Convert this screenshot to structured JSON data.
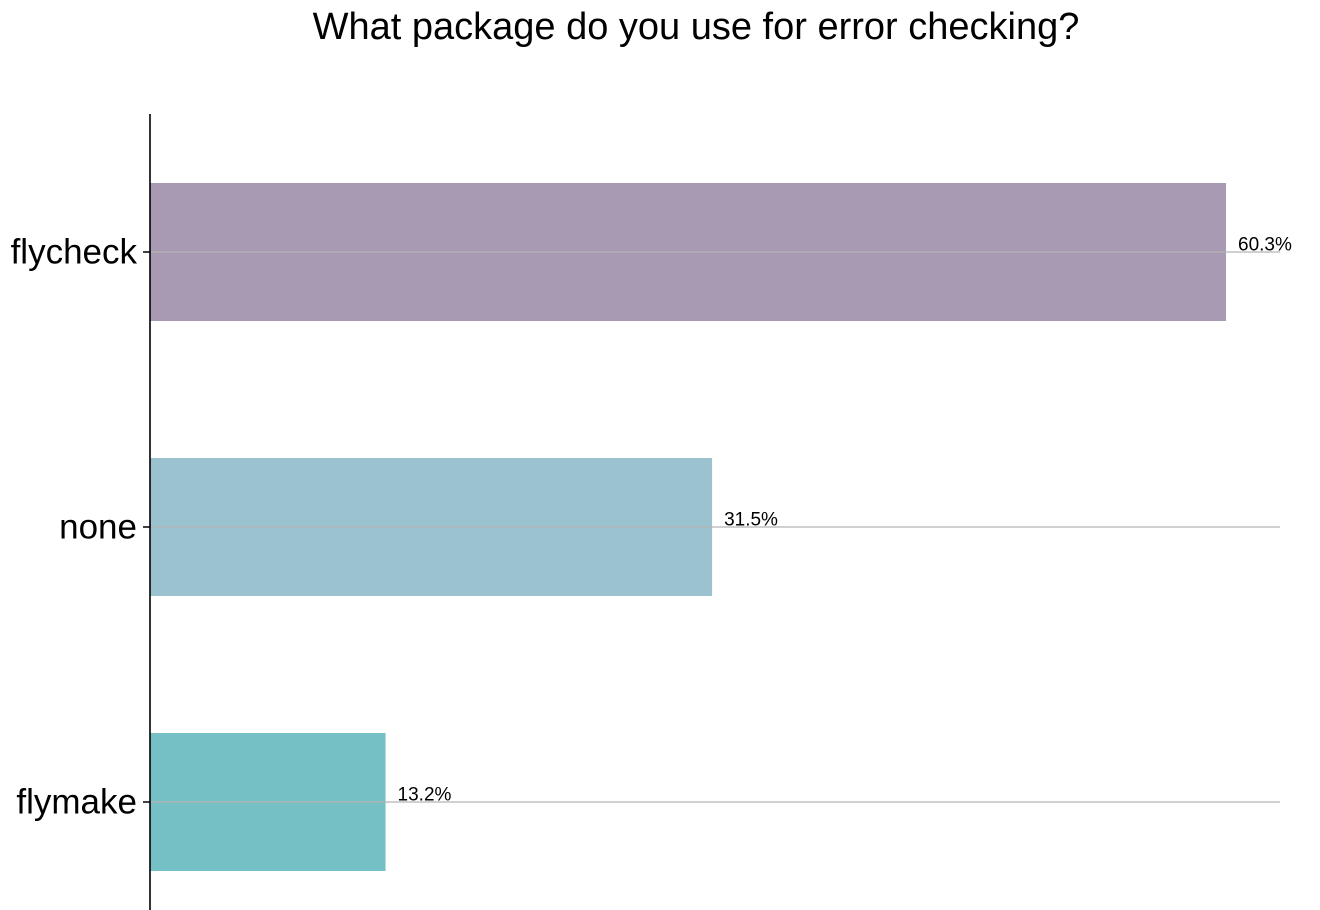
{
  "chart_data": {
    "type": "bar",
    "orientation": "horizontal",
    "title": "What package do you use for error checking?",
    "xlabel": "",
    "ylabel": "",
    "categories": [
      "flycheck",
      "none",
      "flymake"
    ],
    "values": [
      60.3,
      31.5,
      13.2
    ],
    "value_labels": [
      "60.3%",
      "31.5%",
      "13.2%"
    ],
    "colors": [
      "#a89ab3",
      "#9ac3cf",
      "#74c0c4"
    ],
    "xlim": [
      0,
      63.0
    ],
    "grid": "horizontal lines at category centers",
    "legend": "none"
  }
}
